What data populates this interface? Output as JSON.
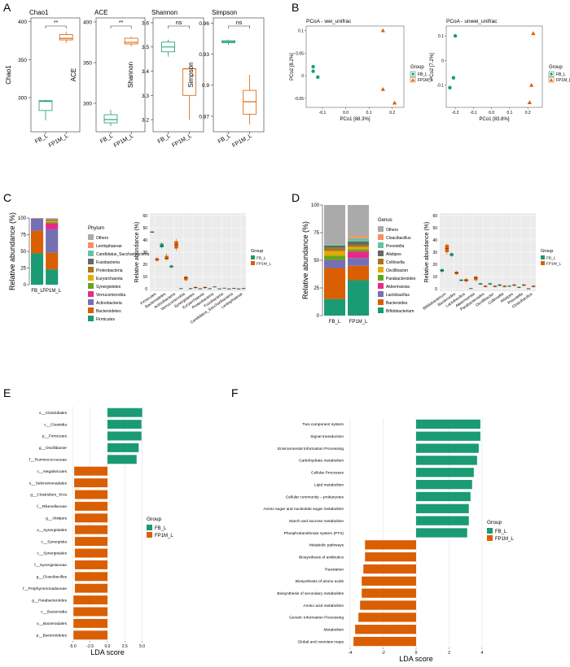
{
  "colors": {
    "fb": "#1a9b73",
    "fp": "#d95f02",
    "panel_bg": "#ebebeb",
    "grid": "#ffffff"
  },
  "panel_letters": [
    "A",
    "B",
    "C",
    "D",
    "E",
    "F"
  ],
  "chart_data": [
    {
      "panel": "A",
      "type": "box",
      "groups": [
        "FB_L",
        "FP1M_L"
      ],
      "subplots": [
        {
          "title": "Chao1",
          "ylabel": "Chao1",
          "sig": "**",
          "ylim": [
            255,
            405
          ],
          "yticks": [
            300,
            350,
            400
          ],
          "boxes": [
            {
              "min": 270,
              "q1": 283,
              "median": 295,
              "q3": 296,
              "max": 297
            },
            {
              "min": 372,
              "q1": 376,
              "median": 378,
              "q3": 383,
              "max": 387
            }
          ]
        },
        {
          "title": "ACE",
          "ylabel": "ACE",
          "sig": "**",
          "ylim": [
            265,
            405
          ],
          "yticks": [
            300,
            350,
            400
          ],
          "boxes": [
            {
              "min": 272,
              "q1": 276,
              "median": 280,
              "q3": 286,
              "max": 292
            },
            {
              "min": 370,
              "q1": 373,
              "median": 375,
              "q3": 380,
              "max": 382
            }
          ]
        },
        {
          "title": "Shannon",
          "ylabel": "Shannon",
          "sig": "ns",
          "ylim": [
            3.15,
            3.62
          ],
          "yticks": [
            3.2,
            3.3,
            3.4,
            3.5,
            3.6
          ],
          "boxes": [
            {
              "min": 3.46,
              "q1": 3.48,
              "median": 3.5,
              "q3": 3.52,
              "max": 3.53
            },
            {
              "min": 3.2,
              "q1": 3.3,
              "median": 3.41,
              "q3": 3.41,
              "max": 3.42
            }
          ]
        },
        {
          "title": "Simpson",
          "ylabel": "Simpson",
          "sig": "ns",
          "ylim": [
            0.855,
            0.965
          ],
          "yticks": [
            0.87,
            0.9,
            0.93,
            0.96
          ],
          "boxes": [
            {
              "min": 0.939,
              "q1": 0.941,
              "median": 0.942,
              "q3": 0.943,
              "max": 0.944
            },
            {
              "min": 0.862,
              "q1": 0.872,
              "median": 0.884,
              "q3": 0.895,
              "max": 0.91
            }
          ]
        }
      ]
    },
    {
      "panel": "B",
      "type": "scatter",
      "legend_title": "Group",
      "groups": [
        "FB_L",
        "FP1M_L"
      ],
      "subplots": [
        {
          "title": "PCoA - wei_unifrac",
          "xlabel": "PCo1 [88.3%]",
          "ylabel": "PCo2 [8.2%]",
          "xlim": [
            -0.17,
            0.25
          ],
          "ylim": [
            -0.07,
            0.11
          ],
          "xticks": [
            -0.1,
            0.0,
            0.1,
            0.2
          ],
          "yticks": [
            -0.05,
            0.0,
            0.05,
            0.1
          ],
          "points": [
            [
              -0.14,
              0.02,
              0
            ],
            [
              -0.14,
              0.01,
              0
            ],
            [
              -0.12,
              -0.003,
              0
            ],
            [
              0.16,
              0.1,
              1
            ],
            [
              0.16,
              -0.03,
              1
            ],
            [
              0.21,
              -0.06,
              1
            ]
          ]
        },
        {
          "title": "PCoA - unwei_unifrac",
          "xlabel": "PCo1 [83.8%]",
          "ylabel": "PCo2 [7.2%]",
          "xlim": [
            -0.25,
            0.28
          ],
          "ylim": [
            -0.19,
            0.14
          ],
          "xticks": [
            -0.2,
            -0.1,
            0.0,
            0.1,
            0.2
          ],
          "yticks": [
            -0.1,
            0.0,
            0.1
          ],
          "points": [
            [
              -0.2,
              0.1,
              0
            ],
            [
              -0.21,
              -0.07,
              0
            ],
            [
              -0.23,
              -0.11,
              0
            ],
            [
              0.23,
              0.11,
              1
            ],
            [
              0.22,
              -0.1,
              1
            ],
            [
              0.21,
              -0.17,
              1
            ]
          ]
        }
      ]
    },
    {
      "panel": "C",
      "type": "stacked_bar",
      "ylabel": "Relative abundance (%)",
      "legend_title": "Phylum",
      "yticks": [
        0,
        25,
        50,
        75,
        100
      ],
      "categories": [
        "FB_L",
        "FP1M_L"
      ],
      "series": [
        {
          "name": "Firmicutes",
          "color": "#1a9b73",
          "values": [
            47,
            23
          ]
        },
        {
          "name": "Bacteroidetes",
          "color": "#d95f02",
          "values": [
            34,
            25
          ]
        },
        {
          "name": "Actinobacteria",
          "color": "#7570b3",
          "values": [
            18,
            35
          ]
        },
        {
          "name": "Verrucomicrobia",
          "color": "#e7298a",
          "values": [
            0.3,
            9
          ]
        },
        {
          "name": "Synergistetes",
          "color": "#66a61e",
          "values": [
            0.2,
            2
          ]
        },
        {
          "name": "Euryarchaeota",
          "color": "#e6ab02",
          "values": [
            0.1,
            1.5
          ]
        },
        {
          "name": "Proteobacteria",
          "color": "#a6761d",
          "values": [
            0.2,
            1.5
          ]
        },
        {
          "name": "Fusobacteria",
          "color": "#666666",
          "values": [
            0.1,
            1
          ]
        },
        {
          "name": "Candidatus_Saccharibacteria",
          "color": "#66c2a5",
          "values": [
            0.05,
            0.5
          ]
        },
        {
          "name": "Lentisphaerae",
          "color": "#fc8d62",
          "values": [
            0.05,
            0.5
          ]
        },
        {
          "name": "Others",
          "color": "#aaaaaa",
          "values": [
            0,
            1
          ]
        }
      ]
    },
    {
      "panel": "C2",
      "type": "box",
      "ylabel": "Relative abundance (%)",
      "legend_title": "Group",
      "groups": [
        "FB_L",
        "FP1M_L"
      ],
      "ylim": [
        -2,
        62
      ],
      "yticks": [
        0,
        10,
        20,
        30,
        40,
        50,
        60
      ],
      "categories": [
        "Firmicutes",
        "Bacteroidetes",
        "Actinobacteria",
        "Verrucomicrobia",
        "Synergistetes",
        "Euryarchaeota",
        "Proteobacteria",
        "Fusobacteria",
        "Candidatus_Saccharibacteria",
        "Lentisphaerae"
      ],
      "boxes_fb": [
        [
          46,
          46,
          46.5,
          47,
          47
        ],
        [
          33,
          34,
          35,
          37,
          38
        ],
        [
          17,
          17.5,
          18,
          19,
          20
        ],
        [
          0,
          0.1,
          0.2,
          0.3,
          0.5
        ],
        [
          0,
          0.1,
          0.2,
          0.2,
          0.3
        ],
        [
          0,
          0,
          0.1,
          0.1,
          0.2
        ],
        [
          0,
          0.1,
          0.1,
          0.2,
          0.3
        ],
        [
          0,
          0,
          0,
          0.1,
          0.1
        ],
        [
          0,
          0,
          0,
          0,
          0.1
        ],
        [
          0,
          0,
          0,
          0,
          0.1
        ]
      ],
      "boxes_fp": [
        [
          22,
          23,
          24,
          25,
          26
        ],
        [
          23,
          24,
          25,
          27,
          29
        ],
        [
          31,
          33,
          36,
          39,
          41
        ],
        [
          6,
          7,
          9,
          10,
          11
        ],
        [
          0,
          0.5,
          1,
          1.5,
          2
        ],
        [
          0,
          0.5,
          1,
          1.5,
          2
        ],
        [
          1,
          1.2,
          1.5,
          1.8,
          2
        ],
        [
          0,
          0.3,
          0.5,
          0.8,
          1
        ],
        [
          0,
          0.2,
          0.3,
          0.5,
          0.8
        ],
        [
          0,
          0.1,
          0.3,
          0.4,
          0.6
        ]
      ]
    },
    {
      "panel": "D",
      "type": "stacked_bar",
      "ylabel": "Relative abundance (%)",
      "legend_title": "Genus",
      "yticks": [
        0,
        25,
        50,
        75,
        100
      ],
      "categories": [
        "FB_L",
        "FP1M_L"
      ],
      "series": [
        {
          "name": "Bifidobacterium",
          "color": "#1a9b73",
          "values": [
            15,
            32
          ]
        },
        {
          "name": "Bacteroides",
          "color": "#d95f02",
          "values": [
            28,
            13
          ]
        },
        {
          "name": "Lactobacillus",
          "color": "#7570b3",
          "values": [
            7,
            7
          ]
        },
        {
          "name": "Akkermansia",
          "color": "#e7298a",
          "values": [
            0.3,
            6
          ]
        },
        {
          "name": "Parabacteroides",
          "color": "#66a61e",
          "values": [
            4,
            2
          ]
        },
        {
          "name": "Oscillibacter",
          "color": "#e6ab02",
          "values": [
            4,
            2
          ]
        },
        {
          "name": "Collinsella",
          "color": "#a6761d",
          "values": [
            3,
            2
          ]
        },
        {
          "name": "Alistipes",
          "color": "#666666",
          "values": [
            2,
            3
          ]
        },
        {
          "name": "Prevotella",
          "color": "#66c2a5",
          "values": [
            1,
            3
          ]
        },
        {
          "name": "Cloacibacillus",
          "color": "#fc8d62",
          "values": [
            0.1,
            2
          ]
        },
        {
          "name": "Others",
          "color": "#aaaaaa",
          "values": [
            35.6,
            28
          ]
        }
      ]
    },
    {
      "panel": "D2",
      "type": "box",
      "ylabel": "Relative abundance (%)",
      "legend_title": "Group",
      "groups": [
        "FB_L",
        "FP1M_L"
      ],
      "ylim": [
        -2,
        62
      ],
      "yticks": [
        0,
        10,
        20,
        30,
        40,
        50,
        60
      ],
      "categories": [
        "Bifidobacterium",
        "Bacteroides",
        "Lactobacillus",
        "Akkermansia",
        "Parabacteroides",
        "Oscillibacter",
        "Collinsella",
        "Alistipes",
        "Prevotella",
        "Cloacibacillus"
      ],
      "boxes_fb": [
        [
          13,
          14,
          15,
          16,
          17
        ],
        [
          26,
          27,
          28,
          29,
          30
        ],
        [
          6,
          6.5,
          7,
          7.5,
          8
        ],
        [
          0,
          0.1,
          0.2,
          0.3,
          0.5
        ],
        [
          3,
          3.5,
          4,
          4.5,
          5
        ],
        [
          3,
          3.5,
          4,
          4.5,
          5
        ],
        [
          2,
          2.5,
          3,
          3.5,
          4
        ],
        [
          1.5,
          2,
          2,
          2.5,
          3
        ],
        [
          0.5,
          1,
          1,
          1.5,
          2
        ],
        [
          0,
          0,
          0.1,
          0.1,
          0.2
        ]
      ],
      "boxes_fp": [
        [
          28,
          30,
          33,
          36,
          37
        ],
        [
          11,
          12,
          13,
          14,
          15
        ],
        [
          5,
          6,
          7,
          8,
          9
        ],
        [
          6,
          7,
          9,
          10,
          11
        ],
        [
          1,
          1.5,
          2,
          2.5,
          3
        ],
        [
          1,
          1.5,
          2,
          2.5,
          3
        ],
        [
          1,
          1.5,
          2,
          2.5,
          3
        ],
        [
          2,
          2.5,
          3,
          3.5,
          4
        ],
        [
          2,
          2.5,
          3,
          3.5,
          4
        ],
        [
          1,
          1.5,
          2,
          2.5,
          3
        ]
      ]
    },
    {
      "panel": "E",
      "type": "bar_horizontal",
      "xlabel": "LDA score",
      "legend_title": "Group",
      "groups": [
        "FB_L",
        "FP1M_L"
      ],
      "xlim": [
        -5.4,
        5.4
      ],
      "xticks": [
        -5.0,
        -2.5,
        0.0,
        2.5,
        5.0
      ],
      "categories": [
        "o__Clostridiales",
        "c__Clostridia",
        "p__Firmicutes",
        "g__Oscillibacter",
        "f__Ruminococcaceae",
        "c__Negativicutes",
        "o__Selenomonadales",
        "g__Clostridium_XIVa",
        "f__Rikenellaceae",
        "g__Alistipes",
        "o__Synergistales",
        "c__Synergistia",
        "c__Synergistales",
        "f__Synergistaceae",
        "g__Cloacibacillus",
        "f__Porphyromonadaceae",
        "g__Parabacteroides",
        "c__Bacteroidia",
        "o__Bacteroidales",
        "p__Bacteroidetes"
      ],
      "values": [
        5.0,
        4.9,
        4.9,
        4.5,
        4.2,
        -4.8,
        -4.8,
        -4.7,
        -4.7,
        -4.7,
        -4.7,
        -4.7,
        -4.7,
        -4.7,
        -4.7,
        -4.7,
        -4.9,
        -4.9,
        -4.9,
        -4.9
      ],
      "tick_labels": [
        "-5.0",
        "-2.5",
        "0.0",
        "2.5",
        "5.0"
      ]
    },
    {
      "panel": "F",
      "type": "bar_horizontal",
      "xlabel": "LDA score",
      "legend_title": "Group",
      "groups": [
        "FB_L",
        "FP1M_L"
      ],
      "xlim": [
        -4.2,
        4.2
      ],
      "xticks": [
        -4,
        -2,
        0,
        2,
        4
      ],
      "categories": [
        "Two-component system",
        "Signal transduction",
        "Environmental Information Processing",
        "Carbohydrate metabolism",
        "Cellular Processes",
        "Lipid metabolism",
        "Cellular community – prokaryotes",
        "Amino sugar and nucleotide sugar metabolism",
        "Starch and sucrose metabolism",
        "Phosphotransferase system (PTS)",
        "Metabolic pathways",
        "Biosynthesis of antibiotics",
        "Translation",
        "Biosynthesis of amino acids",
        "Biosynthesis of secondary metabolites",
        "Amino acid metabolism",
        "Genetic Information Processing",
        "Metabolism",
        "Global and overview maps"
      ],
      "values": [
        3.9,
        3.9,
        3.8,
        3.7,
        3.5,
        3.4,
        3.3,
        3.2,
        3.2,
        3.1,
        -3.1,
        -3.1,
        -3.2,
        -3.3,
        -3.3,
        -3.4,
        -3.5,
        -3.7,
        -3.8
      ],
      "tick_labels": [
        "-4",
        "-2",
        "0",
        "2",
        "4"
      ]
    }
  ]
}
